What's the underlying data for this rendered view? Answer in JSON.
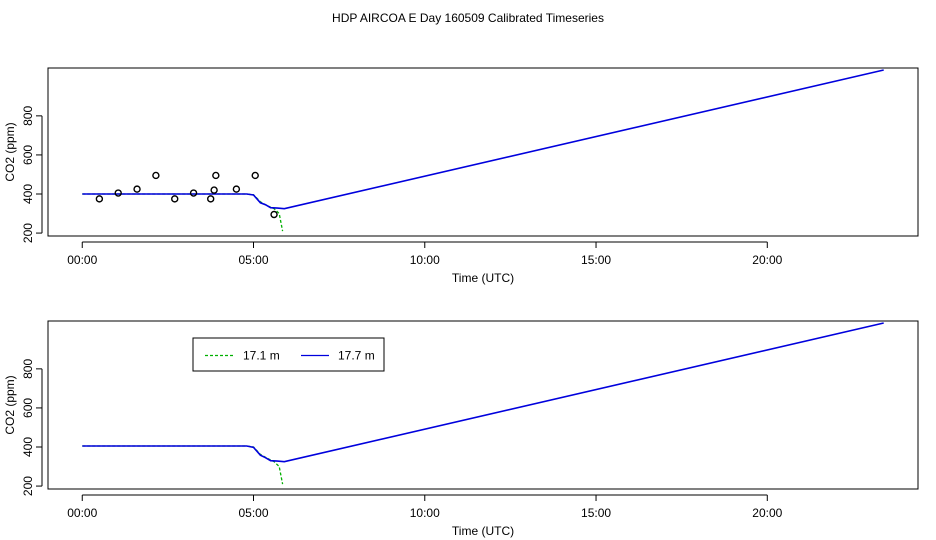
{
  "title": "HDP AIRCOA E  Day 160509  Calibrated Timeseries",
  "colors": {
    "green": "#00b000",
    "blue": "#0000dd",
    "points": "#000000",
    "axis": "#000000"
  },
  "chart_data": [
    {
      "type": "line",
      "xlabel": "Time (UTC)",
      "ylabel": "CO2 (ppm)",
      "x_ticks": [
        0,
        5,
        10,
        15,
        20
      ],
      "x_tick_labels": [
        "00:00",
        "05:00",
        "10:00",
        "15:00",
        "20:00"
      ],
      "y_ticks": [
        200,
        400,
        600,
        800
      ],
      "y_tick_labels": [
        "200",
        "400",
        "600",
        "800"
      ],
      "xlim": [
        -1,
        24.4
      ],
      "ylim": [
        185,
        1045
      ],
      "series": [
        {
          "name": "17.1 m",
          "color": "#00b000",
          "x": [
            0.0,
            4.8,
            5.0,
            5.2,
            5.4,
            5.6,
            5.75,
            5.85
          ],
          "y": [
            400,
            400,
            396,
            360,
            340,
            325,
            300,
            210
          ]
        },
        {
          "name": "17.7 m",
          "color": "#0000dd",
          "x": [
            0.0,
            4.8,
            5.0,
            5.2,
            5.35,
            5.5,
            5.7,
            5.9,
            23.4
          ],
          "y": [
            400,
            400,
            395,
            355,
            345,
            330,
            328,
            325,
            1035
          ]
        }
      ],
      "points": {
        "x": [
          0.5,
          1.05,
          1.6,
          2.15,
          2.7,
          3.25,
          3.75,
          3.85,
          3.9,
          4.5,
          5.05,
          5.6
        ],
        "y": [
          375,
          405,
          425,
          495,
          375,
          405,
          375,
          420,
          495,
          425,
          495,
          295
        ]
      }
    },
    {
      "type": "line",
      "xlabel": "Time (UTC)",
      "ylabel": "CO2 (ppm)",
      "x_ticks": [
        0,
        5,
        10,
        15,
        20
      ],
      "x_tick_labels": [
        "00:00",
        "05:00",
        "10:00",
        "15:00",
        "20:00"
      ],
      "y_ticks": [
        200,
        400,
        600,
        800
      ],
      "y_tick_labels": [
        "200",
        "400",
        "600",
        "800"
      ],
      "xlim": [
        -1,
        24.4
      ],
      "ylim": [
        185,
        1045
      ],
      "legend": {
        "entries": [
          {
            "label": "17.1 m",
            "color": "#00b000",
            "dashed": true
          },
          {
            "label": "17.7 m",
            "color": "#0000dd",
            "dashed": false
          }
        ]
      },
      "series": [
        {
          "name": "17.1 m",
          "color": "#00b000",
          "x": [
            0.0,
            4.8,
            5.0,
            5.2,
            5.4,
            5.6,
            5.75,
            5.85
          ],
          "y": [
            405,
            405,
            400,
            362,
            342,
            325,
            300,
            210
          ]
        },
        {
          "name": "17.7 m",
          "color": "#0000dd",
          "x": [
            0.0,
            4.8,
            5.0,
            5.2,
            5.35,
            5.5,
            5.7,
            5.9,
            23.4
          ],
          "y": [
            405,
            405,
            398,
            358,
            345,
            330,
            328,
            325,
            1035
          ]
        }
      ]
    }
  ]
}
